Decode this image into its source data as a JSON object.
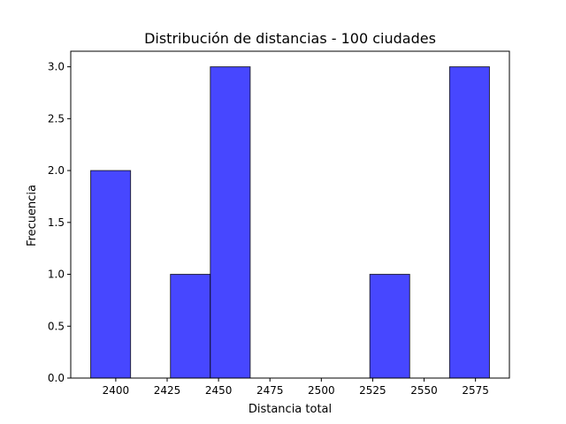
{
  "chart_data": {
    "type": "bar",
    "title": "Distribución de distancias - 100 ciudades",
    "xlabel": "Distancia total",
    "ylabel": "Frecuencia",
    "bin_edges": [
      2387.8,
      2407.2,
      2426.6,
      2446.0,
      2465.4,
      2484.8,
      2504.2,
      2523.6,
      2543.0,
      2562.4,
      2581.8
    ],
    "values": [
      2,
      0,
      1,
      3,
      0,
      0,
      0,
      1,
      0,
      3
    ],
    "xlim": [
      2378.1,
      2591.5
    ],
    "ylim": [
      0,
      3.15
    ],
    "xticks": [
      2400,
      2425,
      2450,
      2475,
      2500,
      2525,
      2550,
      2575
    ],
    "xtick_labels": [
      "2400",
      "2425",
      "2450",
      "2475",
      "2500",
      "2525",
      "2550",
      "2575"
    ],
    "yticks": [
      0.0,
      0.5,
      1.0,
      1.5,
      2.0,
      2.5,
      3.0
    ],
    "ytick_labels": [
      "0.0",
      "0.5",
      "1.0",
      "1.5",
      "2.0",
      "2.5",
      "3.0"
    ],
    "bar_color": "#4747ff",
    "edge_color": "#000000",
    "grid": false,
    "legend": false
  }
}
